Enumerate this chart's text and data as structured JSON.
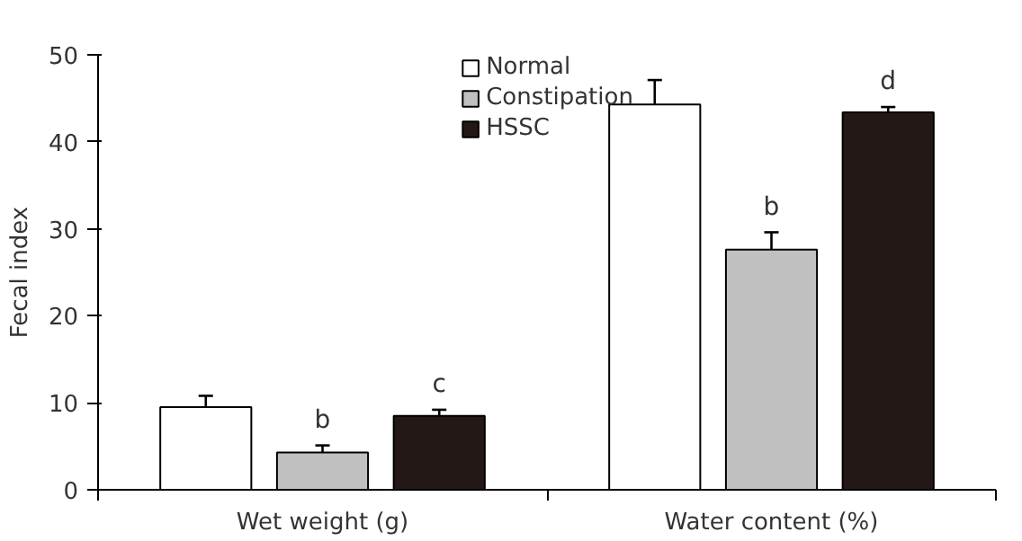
{
  "chart_data": {
    "type": "bar",
    "ylabel": "Fecal index",
    "categories": [
      "Wet weight (g)",
      "Water content (%)"
    ],
    "series": [
      {
        "name": "Normal",
        "color": "#ffffff",
        "values": [
          9.5,
          44.3
        ],
        "errors": [
          1.3,
          2.8
        ]
      },
      {
        "name": "Constipation",
        "color": "#c0c0c0",
        "values": [
          4.3,
          27.6
        ],
        "errors": [
          0.8,
          2.0
        ],
        "value_labels": [
          "b",
          "b"
        ]
      },
      {
        "name": "HSSC",
        "color": "#231816",
        "values": [
          8.5,
          43.4
        ],
        "errors": [
          0.7,
          0.6
        ],
        "value_labels": [
          "c",
          "d"
        ]
      }
    ],
    "ylim": [
      0,
      50
    ],
    "yticks": [
      0,
      10,
      20,
      30,
      40,
      50
    ],
    "grid": false,
    "legend": "top"
  }
}
